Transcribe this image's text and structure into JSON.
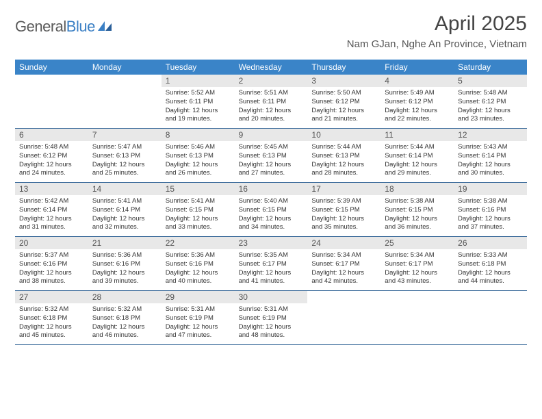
{
  "brand": {
    "name_part1": "General",
    "name_part2": "Blue"
  },
  "title": "April 2025",
  "location": "Nam GJan, Nghe An Province, Vietnam",
  "colors": {
    "header_bg": "#3a84c8",
    "header_text": "#ffffff",
    "daynum_bg": "#e8e8e8",
    "week_border": "#3a6a9a",
    "brand_gray": "#5a5a5a",
    "brand_blue": "#3a7fc4"
  },
  "fonts": {
    "title_size": 30,
    "location_size": 15,
    "weekday_size": 12,
    "daynum_size": 12,
    "body_size": 9.5
  },
  "weekdays": [
    "Sunday",
    "Monday",
    "Tuesday",
    "Wednesday",
    "Thursday",
    "Friday",
    "Saturday"
  ],
  "weeks": [
    [
      null,
      null,
      {
        "n": "1",
        "sunrise": "Sunrise: 5:52 AM",
        "sunset": "Sunset: 6:11 PM",
        "d1": "Daylight: 12 hours",
        "d2": "and 19 minutes."
      },
      {
        "n": "2",
        "sunrise": "Sunrise: 5:51 AM",
        "sunset": "Sunset: 6:11 PM",
        "d1": "Daylight: 12 hours",
        "d2": "and 20 minutes."
      },
      {
        "n": "3",
        "sunrise": "Sunrise: 5:50 AM",
        "sunset": "Sunset: 6:12 PM",
        "d1": "Daylight: 12 hours",
        "d2": "and 21 minutes."
      },
      {
        "n": "4",
        "sunrise": "Sunrise: 5:49 AM",
        "sunset": "Sunset: 6:12 PM",
        "d1": "Daylight: 12 hours",
        "d2": "and 22 minutes."
      },
      {
        "n": "5",
        "sunrise": "Sunrise: 5:48 AM",
        "sunset": "Sunset: 6:12 PM",
        "d1": "Daylight: 12 hours",
        "d2": "and 23 minutes."
      }
    ],
    [
      {
        "n": "6",
        "sunrise": "Sunrise: 5:48 AM",
        "sunset": "Sunset: 6:12 PM",
        "d1": "Daylight: 12 hours",
        "d2": "and 24 minutes."
      },
      {
        "n": "7",
        "sunrise": "Sunrise: 5:47 AM",
        "sunset": "Sunset: 6:13 PM",
        "d1": "Daylight: 12 hours",
        "d2": "and 25 minutes."
      },
      {
        "n": "8",
        "sunrise": "Sunrise: 5:46 AM",
        "sunset": "Sunset: 6:13 PM",
        "d1": "Daylight: 12 hours",
        "d2": "and 26 minutes."
      },
      {
        "n": "9",
        "sunrise": "Sunrise: 5:45 AM",
        "sunset": "Sunset: 6:13 PM",
        "d1": "Daylight: 12 hours",
        "d2": "and 27 minutes."
      },
      {
        "n": "10",
        "sunrise": "Sunrise: 5:44 AM",
        "sunset": "Sunset: 6:13 PM",
        "d1": "Daylight: 12 hours",
        "d2": "and 28 minutes."
      },
      {
        "n": "11",
        "sunrise": "Sunrise: 5:44 AM",
        "sunset": "Sunset: 6:14 PM",
        "d1": "Daylight: 12 hours",
        "d2": "and 29 minutes."
      },
      {
        "n": "12",
        "sunrise": "Sunrise: 5:43 AM",
        "sunset": "Sunset: 6:14 PM",
        "d1": "Daylight: 12 hours",
        "d2": "and 30 minutes."
      }
    ],
    [
      {
        "n": "13",
        "sunrise": "Sunrise: 5:42 AM",
        "sunset": "Sunset: 6:14 PM",
        "d1": "Daylight: 12 hours",
        "d2": "and 31 minutes."
      },
      {
        "n": "14",
        "sunrise": "Sunrise: 5:41 AM",
        "sunset": "Sunset: 6:14 PM",
        "d1": "Daylight: 12 hours",
        "d2": "and 32 minutes."
      },
      {
        "n": "15",
        "sunrise": "Sunrise: 5:41 AM",
        "sunset": "Sunset: 6:15 PM",
        "d1": "Daylight: 12 hours",
        "d2": "and 33 minutes."
      },
      {
        "n": "16",
        "sunrise": "Sunrise: 5:40 AM",
        "sunset": "Sunset: 6:15 PM",
        "d1": "Daylight: 12 hours",
        "d2": "and 34 minutes."
      },
      {
        "n": "17",
        "sunrise": "Sunrise: 5:39 AM",
        "sunset": "Sunset: 6:15 PM",
        "d1": "Daylight: 12 hours",
        "d2": "and 35 minutes."
      },
      {
        "n": "18",
        "sunrise": "Sunrise: 5:38 AM",
        "sunset": "Sunset: 6:15 PM",
        "d1": "Daylight: 12 hours",
        "d2": "and 36 minutes."
      },
      {
        "n": "19",
        "sunrise": "Sunrise: 5:38 AM",
        "sunset": "Sunset: 6:16 PM",
        "d1": "Daylight: 12 hours",
        "d2": "and 37 minutes."
      }
    ],
    [
      {
        "n": "20",
        "sunrise": "Sunrise: 5:37 AM",
        "sunset": "Sunset: 6:16 PM",
        "d1": "Daylight: 12 hours",
        "d2": "and 38 minutes."
      },
      {
        "n": "21",
        "sunrise": "Sunrise: 5:36 AM",
        "sunset": "Sunset: 6:16 PM",
        "d1": "Daylight: 12 hours",
        "d2": "and 39 minutes."
      },
      {
        "n": "22",
        "sunrise": "Sunrise: 5:36 AM",
        "sunset": "Sunset: 6:16 PM",
        "d1": "Daylight: 12 hours",
        "d2": "and 40 minutes."
      },
      {
        "n": "23",
        "sunrise": "Sunrise: 5:35 AM",
        "sunset": "Sunset: 6:17 PM",
        "d1": "Daylight: 12 hours",
        "d2": "and 41 minutes."
      },
      {
        "n": "24",
        "sunrise": "Sunrise: 5:34 AM",
        "sunset": "Sunset: 6:17 PM",
        "d1": "Daylight: 12 hours",
        "d2": "and 42 minutes."
      },
      {
        "n": "25",
        "sunrise": "Sunrise: 5:34 AM",
        "sunset": "Sunset: 6:17 PM",
        "d1": "Daylight: 12 hours",
        "d2": "and 43 minutes."
      },
      {
        "n": "26",
        "sunrise": "Sunrise: 5:33 AM",
        "sunset": "Sunset: 6:18 PM",
        "d1": "Daylight: 12 hours",
        "d2": "and 44 minutes."
      }
    ],
    [
      {
        "n": "27",
        "sunrise": "Sunrise: 5:32 AM",
        "sunset": "Sunset: 6:18 PM",
        "d1": "Daylight: 12 hours",
        "d2": "and 45 minutes."
      },
      {
        "n": "28",
        "sunrise": "Sunrise: 5:32 AM",
        "sunset": "Sunset: 6:18 PM",
        "d1": "Daylight: 12 hours",
        "d2": "and 46 minutes."
      },
      {
        "n": "29",
        "sunrise": "Sunrise: 5:31 AM",
        "sunset": "Sunset: 6:19 PM",
        "d1": "Daylight: 12 hours",
        "d2": "and 47 minutes."
      },
      {
        "n": "30",
        "sunrise": "Sunrise: 5:31 AM",
        "sunset": "Sunset: 6:19 PM",
        "d1": "Daylight: 12 hours",
        "d2": "and 48 minutes."
      },
      null,
      null,
      null
    ]
  ]
}
